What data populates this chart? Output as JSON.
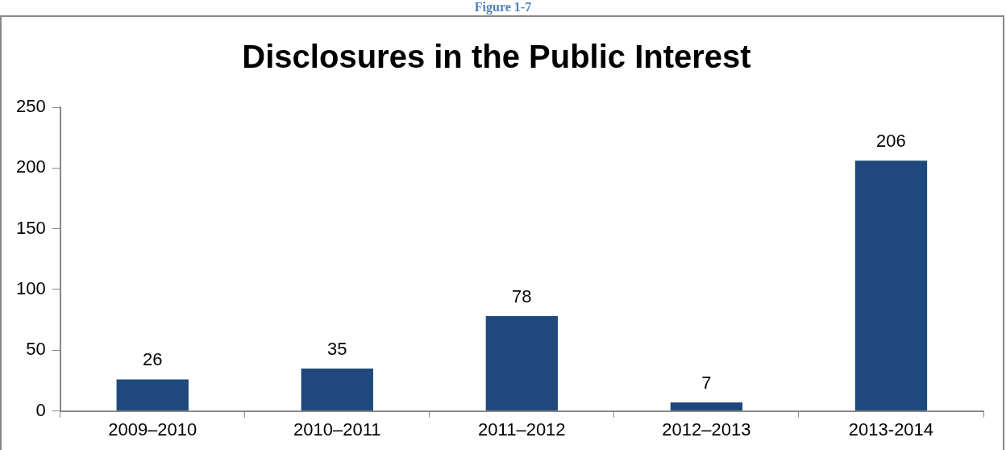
{
  "chart_data": {
    "type": "bar",
    "title": "Disclosures in the Public Interest",
    "annotations": [
      "Figure 1-7"
    ],
    "categories": [
      "2009–2010",
      "2010–2011",
      "2011–2012",
      "2012–2013",
      "2013-2014"
    ],
    "values": [
      26,
      35,
      78,
      7,
      206
    ],
    "color": "#1f497d",
    "ylim": [
      0,
      250
    ],
    "yticks": [
      0,
      50,
      100,
      150,
      200,
      250
    ],
    "grid": false,
    "legend": false,
    "data_labels": true
  }
}
